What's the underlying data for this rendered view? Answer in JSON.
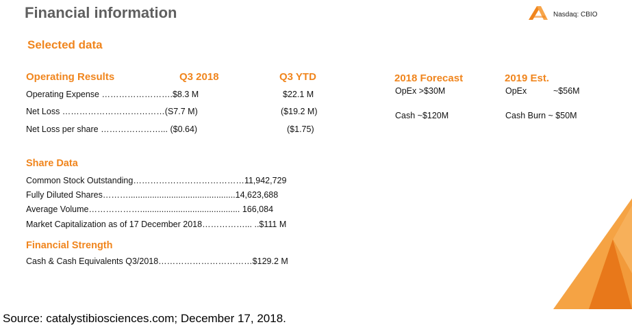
{
  "slide": {
    "title": "Financial information",
    "exchange": "Nasdaq: CBIO",
    "subtitle": "Selected data"
  },
  "operating": {
    "heading": "Operating Results",
    "col_q3": "Q3 2018",
    "col_ytd": "Q3 YTD",
    "rows": [
      {
        "label": "Operating Expense …………………….$8.3 M",
        "ytd": "$22.1 M"
      },
      {
        "label": "Net Loss ………………………………(S7.7 M)",
        "ytd": "($19.2 M)"
      },
      {
        "label": "Net Loss per share …………………... ($0.64)",
        "ytd": "($1.75)"
      }
    ]
  },
  "forecast": {
    "heading_2018": "2018 Forecast",
    "heading_2019": "2019 Est.",
    "opex_2018": "OpEx  >$30M",
    "cash_2018": "Cash ~$120M",
    "opex_2019_label": "OpEx",
    "opex_2019_value": "~$56M",
    "cash_2019": "Cash Burn ~ $50M"
  },
  "share_data": {
    "heading": "Share Data",
    "rows": [
      "Common Stock Outstanding…………………………………11,942,729",
      "Fully Diluted Shares……….............................................14,623,688",
      "Average Volume……………….......................................... 166,084",
      "Market Capitalization as of 17 December 2018……………... ..$111 M"
    ]
  },
  "financial_strength": {
    "heading": "Financial Strength",
    "rows": [
      "Cash & Cash Equivalents Q3/2018……………………………$129.2 M"
    ]
  },
  "footer": {
    "source": "Source: catalystibiosciences.com; December 17, 2018."
  },
  "colors": {
    "accent": "#f0851d",
    "title_gray": "#5f5f5f",
    "navy": "#1f3864"
  },
  "icons": {
    "logo": "catalyst-chevron-logo",
    "decoration": "orange-triangle-decoration"
  }
}
